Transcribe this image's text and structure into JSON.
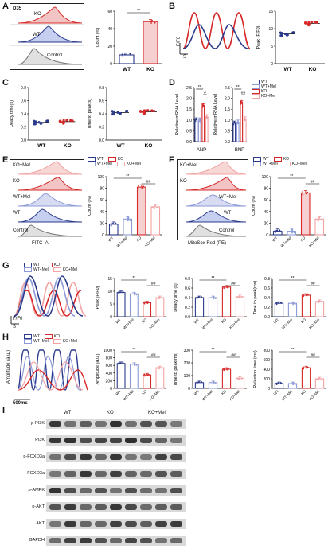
{
  "colors": {
    "wt": "#2b3a8c",
    "wt_mel": "#8c9ad6",
    "ko": "#d62828",
    "ko_mel": "#f2a3a3",
    "control": "#9a9a9a"
  },
  "panels": {
    "A": {
      "label": "A",
      "hist_labels": [
        "D35",
        "KO",
        "WT",
        "Control"
      ],
      "ylabel": "Count (%)",
      "sig": "**",
      "chart_data": {
        "type": "bar",
        "categories": [
          "WT",
          "KO"
        ],
        "values": [
          10,
          48
        ],
        "ylim": [
          0,
          60
        ],
        "yticks": [
          "0",
          "20",
          "40",
          "60"
        ]
      }
    },
    "B": {
      "label": "B",
      "trace_ylabel": "F/F0",
      "trace_x": "S",
      "ylabel": "Peak (F/F0)",
      "chart_data": {
        "type": "scatter",
        "categories": [
          "WT",
          "KO"
        ],
        "values": [
          8.5,
          11.5
        ],
        "ylim": [
          0,
          15
        ],
        "yticks": [
          "0",
          "5",
          "10",
          "15"
        ]
      }
    },
    "C": {
      "label": "C",
      "chart_data": [
        {
          "type": "scatter",
          "ylabel": "Deacy time(s)",
          "categories": [
            "WT",
            "KO"
          ],
          "values": [
            0.27,
            0.28
          ],
          "ylim": [
            0,
            0.8
          ],
          "yticks": [
            "0.0",
            "0.2",
            "0.4",
            "0.6",
            "0.8"
          ]
        },
        {
          "type": "scatter",
          "ylabel": "Time to peak(s)",
          "categories": [
            "WT",
            "KO"
          ],
          "values": [
            0.42,
            0.43
          ],
          "ylim": [
            0,
            0.8
          ],
          "yticks": [
            "0.0",
            "0.2",
            "0.4",
            "0.6",
            "0.8"
          ]
        }
      ]
    },
    "D": {
      "label": "D",
      "legend": [
        "WT",
        "WT+Mel",
        "KO",
        "KO+Mel"
      ],
      "chart_data": [
        {
          "type": "bar",
          "ylabel": "Relative mRNA Level",
          "xlabel": "ANP",
          "categories": [
            "WT",
            "WT+Mel",
            "KO",
            "KO+Mel"
          ],
          "values": [
            1.0,
            1.0,
            1.65,
            1.15
          ],
          "ylim": [
            0,
            2.5
          ],
          "yticks": [
            "0.0",
            "0.5",
            "1.0",
            "1.5",
            "2.0",
            "2.5"
          ],
          "sig": [
            "**",
            "#"
          ]
        },
        {
          "type": "bar",
          "ylabel": "Relative mRNA Level",
          "xlabel": "BNP",
          "categories": [
            "WT",
            "WT+Mel",
            "KO",
            "KO+Mel"
          ],
          "values": [
            0.85,
            0.9,
            1.8,
            1.05
          ],
          "ylim": [
            0,
            2.5
          ],
          "yticks": [
            "0.0",
            "0.5",
            "1.0",
            "1.5",
            "2.0",
            "2.5"
          ],
          "sig": [
            "**",
            "##"
          ]
        }
      ]
    },
    "E": {
      "label": "E",
      "hist_labels": [
        "KO+Mel",
        "KO",
        "WT+Mel",
        "WT",
        "Control"
      ],
      "xlabel": "FITC- A",
      "ylabel": "Count (%)",
      "legend": [
        "WT",
        "WT+Mel",
        "KO",
        "KO+Mel"
      ],
      "sig": [
        "**",
        "##"
      ],
      "chart_data": {
        "type": "bar",
        "categories": [
          "WT",
          "WT+Mel",
          "KO",
          "KO+Mel"
        ],
        "values": [
          18,
          27,
          82,
          48
        ],
        "ylim": [
          0,
          100
        ],
        "yticks": [
          "0",
          "20",
          "40",
          "60",
          "80",
          "100"
        ]
      }
    },
    "F": {
      "label": "F",
      "hist_labels": [
        "KO+Mel",
        "KO",
        "WT+Mel",
        "WT",
        "Control"
      ],
      "xlabel": "MitoSox Red (PE)",
      "ylabel": "Count (%)",
      "legend": [
        "WT",
        "WT+Mel",
        "KO",
        "KO+Mel"
      ],
      "sig": [
        "**",
        "##"
      ],
      "chart_data": {
        "type": "bar",
        "categories": [
          "WT",
          "WT+Mel",
          "KO",
          "KO+Mel"
        ],
        "values": [
          6,
          6,
          72,
          27
        ],
        "ylim": [
          0,
          100
        ],
        "yticks": [
          "0",
          "20",
          "40",
          "60",
          "80",
          "100"
        ]
      }
    },
    "G": {
      "label": "G",
      "trace_ylabel": "F/F0",
      "trace_x": "S",
      "legend": [
        "WT",
        "WT+Mel",
        "KO",
        "KO+Mel"
      ],
      "chart_data": [
        {
          "type": "bar",
          "ylabel": "Peak (F/F0)",
          "categories": [
            "WT",
            "WT+Mel",
            "KO",
            "KO+Mel"
          ],
          "values": [
            9.5,
            9.0,
            5.5,
            7.5
          ],
          "ylim": [
            0,
            15
          ],
          "yticks": [
            "0",
            "5",
            "10",
            "15"
          ],
          "sig": [
            "**",
            "##"
          ]
        },
        {
          "type": "bar",
          "ylabel": "Deacy time (s)",
          "categories": [
            "WT",
            "WT+Mel",
            "KO",
            "KO+Mel"
          ],
          "values": [
            0.4,
            0.4,
            0.62,
            0.42
          ],
          "ylim": [
            0,
            0.8
          ],
          "yticks": [
            "0.0",
            "0.2",
            "0.4",
            "0.6",
            "0.8"
          ],
          "sig": [
            "**",
            "##"
          ]
        },
        {
          "type": "bar",
          "ylabel": "Time to peak(ms)",
          "categories": [
            "WT",
            "WT+Mel",
            "KO",
            "KO+Mel"
          ],
          "values": [
            0.28,
            0.28,
            0.45,
            0.32
          ],
          "ylim": [
            0,
            0.8
          ],
          "yticks": [
            "0.0",
            "0.2",
            "0.4",
            "0.6",
            "0.8"
          ],
          "sig": [
            "**",
            "##"
          ]
        }
      ]
    },
    "H": {
      "label": "H",
      "trace_ylabel": "Amplitude (a.u.)",
      "trace_x": "500ms",
      "legend": [
        "WT",
        "WT+Mel",
        "KO",
        "KO+Mel"
      ],
      "chart_data": [
        {
          "type": "bar",
          "ylabel": "Amplitude (a.u.)",
          "categories": [
            "WT",
            "WT+Mel",
            "KO",
            "KO+Mel"
          ],
          "values": [
            650,
            630,
            350,
            540
          ],
          "ylim": [
            0,
            1000
          ],
          "yticks": [
            "0",
            "200",
            "400",
            "600",
            "800",
            "1000"
          ],
          "sig": [
            "**",
            "##"
          ]
        },
        {
          "type": "bar",
          "ylabel": "Time to peak(ms)",
          "categories": [
            "WT",
            "WT+Mel",
            "KO",
            "KO+Mel"
          ],
          "values": [
            45,
            45,
            150,
            80
          ],
          "ylim": [
            0,
            300
          ],
          "yticks": [
            "0",
            "100",
            "200",
            "300"
          ],
          "sig": [
            "**",
            "##"
          ]
        },
        {
          "type": "bar",
          "ylabel": "Relaxtion time (ms)",
          "categories": [
            "WT",
            "WT+Mel",
            "KO",
            "KO+Mel"
          ],
          "values": [
            100,
            100,
            430,
            200
          ],
          "ylim": [
            0,
            800
          ],
          "yticks": [
            "0",
            "200",
            "400",
            "600",
            "800"
          ],
          "sig": [
            "**",
            "##"
          ]
        }
      ]
    },
    "I": {
      "label": "I",
      "groups": [
        "WT",
        "KO",
        "KO+Mel"
      ],
      "rows": [
        "p-PI3K",
        "PI3K",
        "p-FOXO3a",
        "FOXO3a",
        "p-AMPK",
        "p-AKT",
        "AKT",
        "GAPDH"
      ]
    }
  }
}
